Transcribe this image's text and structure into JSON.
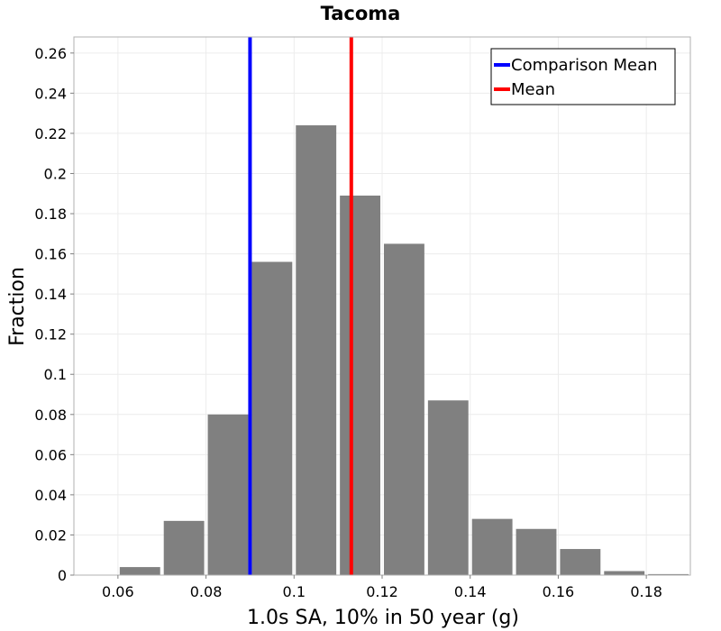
{
  "chart_data": {
    "type": "bar",
    "title": "Tacoma",
    "xlabel": "1.0s SA, 10% in 50 year (g)",
    "ylabel": "Fraction",
    "xlim": [
      0.05,
      0.19
    ],
    "ylim": [
      0,
      0.268
    ],
    "grid": true,
    "bin_width": 0.01,
    "x_ticks": [
      0.06,
      0.08,
      0.1,
      0.12,
      0.14,
      0.16,
      0.18
    ],
    "x_tick_labels": [
      "0.06",
      "0.08",
      "0.1",
      "0.12",
      "0.14",
      "0.16",
      "0.18"
    ],
    "y_ticks": [
      0,
      0.02,
      0.04,
      0.06,
      0.08,
      0.1,
      0.12,
      0.14,
      0.16,
      0.18,
      0.2,
      0.22,
      0.24,
      0.26
    ],
    "y_tick_labels": [
      "0",
      "0.02",
      "0.04",
      "0.06",
      "0.08",
      "0.1",
      "0.12",
      "0.14",
      "0.16",
      "0.18",
      "0.2",
      "0.22",
      "0.24",
      "0.26"
    ],
    "bins": [
      {
        "x0": 0.05,
        "x1": 0.06,
        "value": 0.0
      },
      {
        "x0": 0.06,
        "x1": 0.07,
        "value": 0.004
      },
      {
        "x0": 0.07,
        "x1": 0.08,
        "value": 0.027
      },
      {
        "x0": 0.08,
        "x1": 0.09,
        "value": 0.08
      },
      {
        "x0": 0.09,
        "x1": 0.1,
        "value": 0.156
      },
      {
        "x0": 0.1,
        "x1": 0.11,
        "value": 0.224
      },
      {
        "x0": 0.11,
        "x1": 0.12,
        "value": 0.189
      },
      {
        "x0": 0.12,
        "x1": 0.13,
        "value": 0.165
      },
      {
        "x0": 0.13,
        "x1": 0.14,
        "value": 0.087
      },
      {
        "x0": 0.14,
        "x1": 0.15,
        "value": 0.028
      },
      {
        "x0": 0.15,
        "x1": 0.16,
        "value": 0.023
      },
      {
        "x0": 0.16,
        "x1": 0.17,
        "value": 0.013
      },
      {
        "x0": 0.17,
        "x1": 0.18,
        "value": 0.002
      },
      {
        "x0": 0.18,
        "x1": 0.19,
        "value": 0.0005
      }
    ],
    "bar_color": "#808080",
    "vlines": [
      {
        "name": "Comparison Mean",
        "x": 0.09,
        "color": "#0000ff"
      },
      {
        "name": "Mean",
        "x": 0.113,
        "color": "#ff0000"
      }
    ],
    "legend": {
      "position": "top-right",
      "entries": [
        {
          "label": "Comparison Mean",
          "color": "#0000ff"
        },
        {
          "label": "Mean",
          "color": "#ff0000"
        }
      ]
    }
  }
}
